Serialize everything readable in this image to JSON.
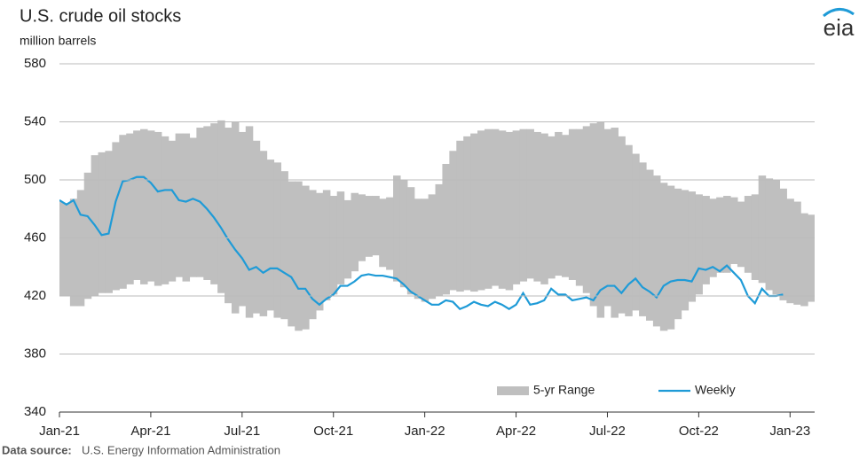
{
  "chart_data": {
    "type": "line",
    "title": "U.S. crude oil stocks",
    "y_label": "million barrels",
    "source_label": "Data source:",
    "source": "U.S. Energy Information Administration",
    "logo": "eia",
    "categories": [
      "Jan-21",
      null,
      null,
      null,
      null,
      null,
      null,
      null,
      null,
      null,
      null,
      null,
      null,
      "Apr-21",
      null,
      null,
      null,
      null,
      null,
      null,
      null,
      null,
      null,
      null,
      null,
      null,
      "Jul-21",
      null,
      null,
      null,
      null,
      null,
      null,
      null,
      null,
      null,
      null,
      null,
      null,
      "Oct-21",
      null,
      null,
      null,
      null,
      null,
      null,
      null,
      null,
      null,
      null,
      null,
      null,
      "Jan-22",
      null,
      null,
      null,
      null,
      null,
      null,
      null,
      null,
      null,
      null,
      null,
      null,
      "Apr-22",
      null,
      null,
      null,
      null,
      null,
      null,
      null,
      null,
      null,
      null,
      null,
      null,
      "Jul-22",
      null,
      null,
      null,
      null,
      null,
      null,
      null,
      null,
      null,
      null,
      null,
      null,
      "Oct-22",
      null,
      null,
      null,
      null,
      null,
      null,
      null,
      null,
      null,
      null,
      null,
      null,
      "Jan-23",
      null,
      null,
      null
    ],
    "series": [
      {
        "name": "5-yr Range",
        "color": "#bfbfbf",
        "low": [
          420,
          420,
          413,
          413,
          418,
          420,
          422,
          422,
          424,
          425,
          428,
          431,
          428,
          430,
          427,
          428,
          430,
          433,
          430,
          433,
          433,
          431,
          428,
          422,
          415,
          408,
          413,
          405,
          408,
          406,
          410,
          405,
          404,
          399,
          396,
          397,
          404,
          410,
          417,
          421,
          428,
          432,
          437,
          444,
          447,
          448,
          440,
          438,
          430,
          426,
          421,
          418,
          416,
          418,
          420,
          421,
          424,
          423,
          424,
          423,
          424,
          425,
          427,
          425,
          424,
          428,
          430,
          432,
          430,
          428,
          432,
          434,
          433,
          431,
          427,
          422,
          413,
          405,
          413,
          405,
          408,
          406,
          410,
          406,
          403,
          399,
          396,
          397,
          404,
          410,
          416,
          421,
          428,
          433,
          436,
          436,
          442,
          440,
          436,
          431,
          429,
          424,
          421,
          417,
          415,
          414,
          413,
          416
        ],
        "high": [
          485,
          484,
          487,
          493,
          505,
          517,
          519,
          520,
          526,
          531,
          532,
          534,
          535,
          534,
          533,
          530,
          527,
          532,
          532,
          529,
          536,
          537,
          539,
          541,
          536,
          540,
          533,
          537,
          527,
          520,
          514,
          512,
          506,
          499,
          499,
          496,
          493,
          491,
          493,
          489,
          492,
          486,
          491,
          490,
          489,
          489,
          487,
          488,
          503,
          500,
          495,
          487,
          487,
          490,
          497,
          511,
          520,
          527,
          530,
          532,
          534,
          535,
          535,
          534,
          533,
          534,
          535,
          535,
          533,
          532,
          530,
          533,
          531,
          535,
          535,
          537,
          539,
          540,
          535,
          536,
          530,
          524,
          518,
          512,
          507,
          503,
          498,
          496,
          494,
          493,
          492,
          490,
          489,
          487,
          488,
          489,
          488,
          485,
          489,
          490,
          503,
          501,
          500,
          494,
          487,
          485,
          477,
          476
        ]
      },
      {
        "name": "Weekly",
        "color": "#1f9bd7",
        "values": [
          486,
          483,
          486,
          476,
          475,
          469,
          462,
          463,
          485,
          499,
          500,
          502,
          502,
          498,
          492,
          493,
          493,
          486,
          485,
          487,
          485,
          480,
          474,
          467,
          459,
          452,
          446,
          438,
          440,
          436,
          439,
          439,
          436,
          433,
          425,
          425,
          418,
          414,
          418,
          421,
          427,
          427,
          430,
          434,
          435,
          434,
          434,
          433,
          432,
          428,
          423,
          420,
          417,
          414,
          414,
          417,
          416,
          411,
          413,
          416,
          414,
          413,
          416,
          414,
          411,
          414,
          422,
          414,
          415,
          417,
          425,
          421,
          421,
          417,
          418,
          419,
          417,
          424,
          427,
          427,
          422,
          428,
          432,
          426,
          423,
          419,
          427,
          430,
          431,
          431,
          430,
          439,
          438,
          440,
          437,
          441,
          436,
          431,
          420,
          415,
          425,
          420,
          420,
          421,
          null,
          null,
          null,
          null
        ]
      }
    ],
    "ylim": [
      340,
      580
    ],
    "yticks": [
      340,
      380,
      420,
      460,
      500,
      540,
      580
    ],
    "grid": true,
    "legend": "bottom-right"
  }
}
